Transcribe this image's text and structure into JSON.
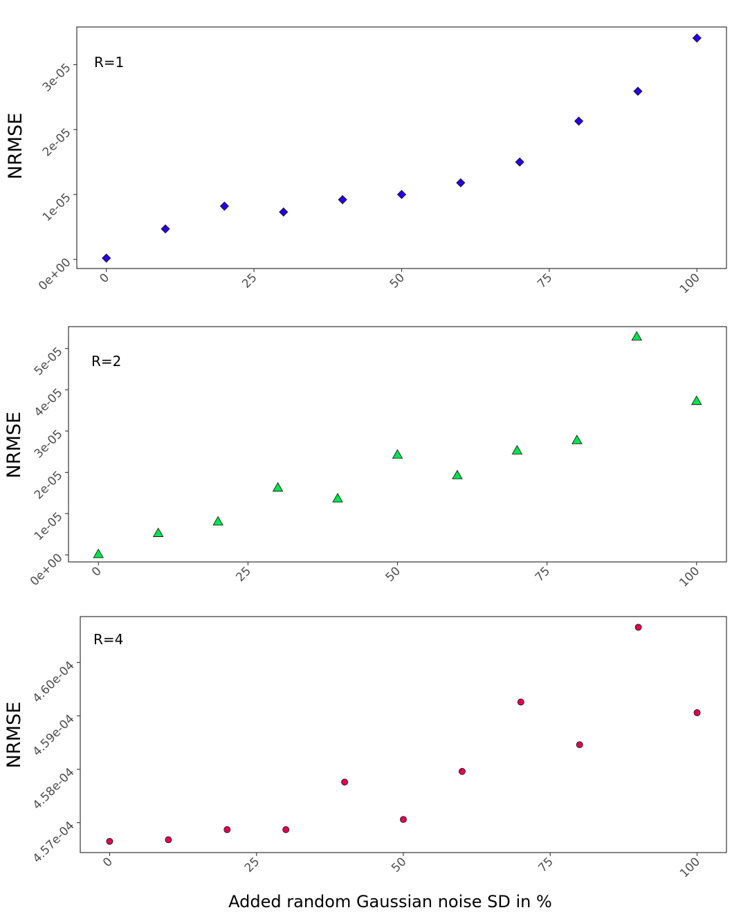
{
  "chart_data": [
    {
      "type": "scatter",
      "panel_label": "R=1",
      "ylabel": "NRMSE",
      "x": [
        0,
        10,
        20,
        30,
        40,
        50,
        60,
        70,
        80,
        90,
        100
      ],
      "y": [
        2e-07,
        4.7e-06,
        8.2e-06,
        7.3e-06,
        9.2e-06,
        1e-05,
        1.18e-05,
        1.5e-05,
        2.13e-05,
        2.59e-05,
        3.41e-05
      ],
      "xticks": [
        0,
        25,
        50,
        75,
        100
      ],
      "xtick_labels": [
        "0",
        "25",
        "50",
        "75",
        "100"
      ],
      "yticks": [
        0,
        1e-05,
        2e-05,
        3e-05
      ],
      "ytick_labels": [
        "0e+00",
        "1e-05",
        "2e-05",
        "3e-05"
      ],
      "xlim": [
        -5,
        105
      ],
      "ylim": [
        -1.4e-06,
        3.58e-05
      ],
      "marker": "diamond",
      "color": "#2600e6"
    },
    {
      "type": "scatter",
      "panel_label": "R=2",
      "ylabel": "NRMSE",
      "x": [
        0,
        10,
        20,
        30,
        40,
        50,
        60,
        70,
        80,
        90,
        100
      ],
      "y": [
        2e-07,
        5.3e-06,
        8.1e-06,
        1.63e-05,
        1.37e-05,
        2.43e-05,
        1.93e-05,
        2.53e-05,
        2.78e-05,
        5.29e-05,
        3.73e-05
      ],
      "xticks": [
        0,
        25,
        50,
        75,
        100
      ],
      "xtick_labels": [
        "0",
        "25",
        "50",
        "75",
        "100"
      ],
      "yticks": [
        0,
        1e-05,
        2e-05,
        3e-05,
        4e-05,
        5e-05
      ],
      "ytick_labels": [
        "0e+00",
        "1e-05",
        "2e-05",
        "3e-05",
        "4e-05",
        "5e-05"
      ],
      "xlim": [
        -5,
        105
      ],
      "ylim": [
        -1.7e-06,
        5.53e-05
      ],
      "marker": "triangle",
      "color": "#00e64d"
    },
    {
      "type": "scatter",
      "panel_label": "R=4",
      "ylabel": "NRMSE",
      "xlabel": "Added random Gaussian noise SD in %",
      "x": [
        0,
        10,
        20,
        30,
        40,
        50,
        60,
        70,
        80,
        90,
        100
      ],
      "y": [
        0.00045665,
        0.00045668,
        0.00045687,
        0.00045687,
        0.00045776,
        0.00045706,
        0.00045796,
        0.00045926,
        0.00045846,
        0.00046066,
        0.00045906
      ],
      "xticks": [
        0,
        25,
        50,
        75,
        100
      ],
      "xtick_labels": [
        "0",
        "25",
        "50",
        "75",
        "100"
      ],
      "yticks": [
        0.000457,
        0.000458,
        0.000459,
        0.00046
      ],
      "ytick_labels": [
        "4.57e-04",
        "4.58e-04",
        "4.59e-04",
        "4.60e-04"
      ],
      "xlim": [
        -5,
        105
      ],
      "ylim": [
        0.00045644,
        0.00046086
      ],
      "marker": "circle",
      "color": "#e6004d"
    }
  ]
}
